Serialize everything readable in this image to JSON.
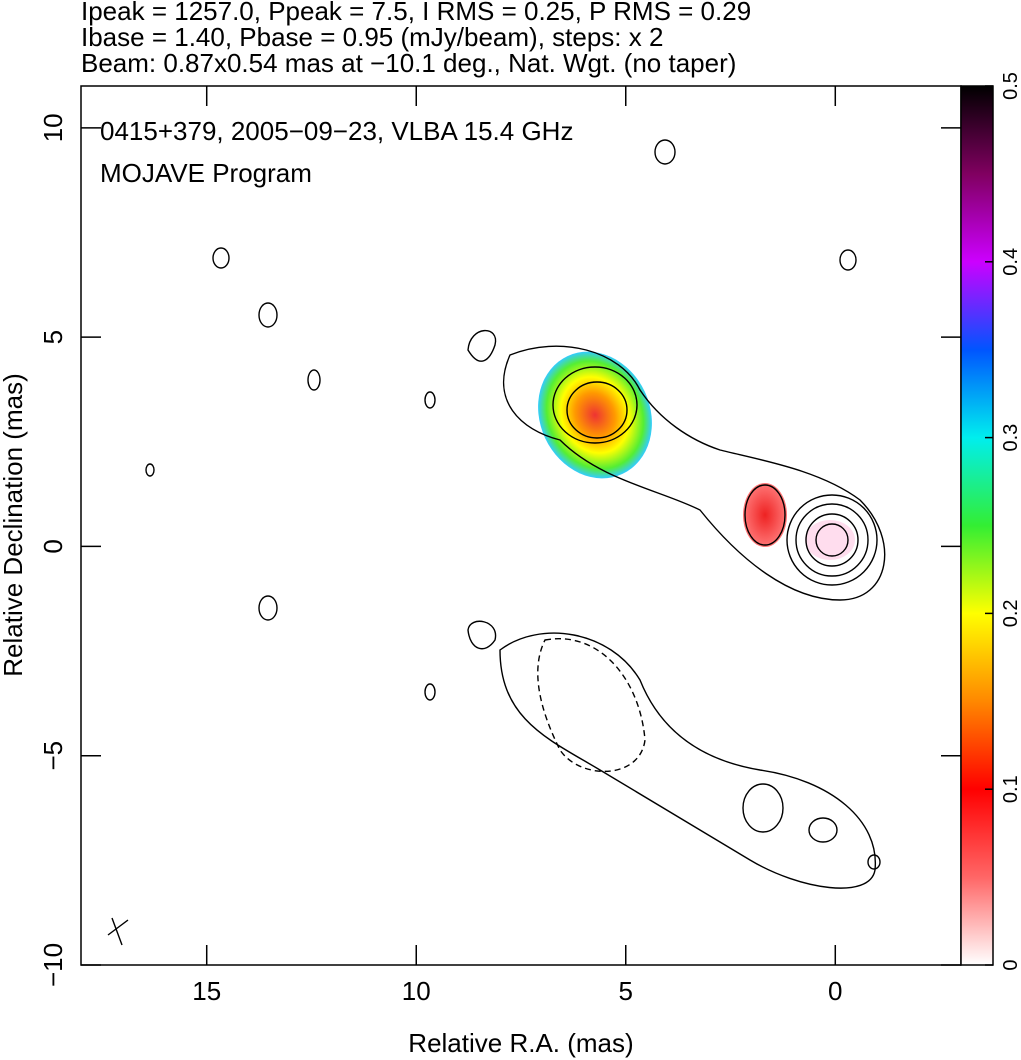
{
  "chart_data": {
    "type": "image",
    "header": [
      "Ipeak = 1257.0, Ppeak = 7.5, I RMS = 0.25, P RMS = 0.29",
      "Ibase = 1.40, Pbase = 0.95 (mJy/beam), steps: x 2",
      "Beam: 0.87x0.54 mas at −10.1 deg., Nat. Wgt. (no taper)"
    ],
    "title": "0415+379, 2005−09−23, VLBA 15.4 GHz",
    "subtitle": "MOJAVE Program",
    "xlabel": "Relative R.A. (mas)",
    "ylabel": "Relative Declination (mas)",
    "xlim": [
      18,
      -3
    ],
    "xticks": [
      15,
      10,
      5,
      0
    ],
    "ylim": [
      -10,
      11
    ],
    "yticks": [
      {
        "value": -10,
        "label": "−10"
      },
      {
        "value": -5,
        "label": "−5"
      },
      0,
      5,
      10
    ],
    "colorbar_lim": [
      0,
      0.5
    ],
    "colorbar_ticks": [
      0,
      0.1,
      0.2,
      0.3,
      0.4,
      0.5
    ]
  }
}
